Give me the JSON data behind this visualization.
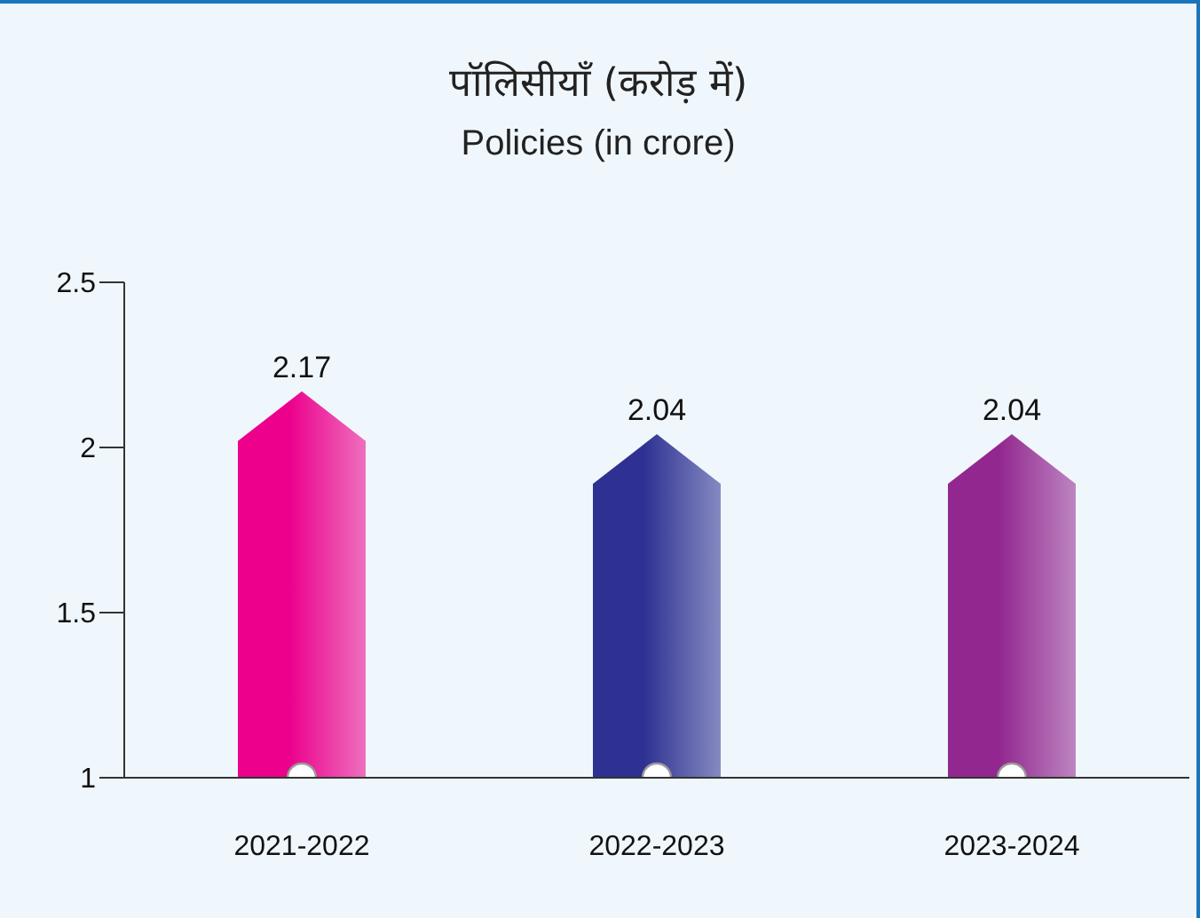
{
  "chart_data": {
    "type": "bar",
    "title": "पॉलिसीयाँ (करोड़ में)",
    "subtitle": "Policies (in crore)",
    "categories": [
      "2021-2022",
      "2022-2023",
      "2023-2024"
    ],
    "values": [
      2.17,
      2.04,
      2.04
    ],
    "colors": [
      "#ec008c",
      "#2e3192",
      "#92278f"
    ],
    "ylim": [
      1,
      2.5
    ],
    "yticks": [
      1,
      1.5,
      2,
      2.5
    ],
    "data_labels": true
  }
}
